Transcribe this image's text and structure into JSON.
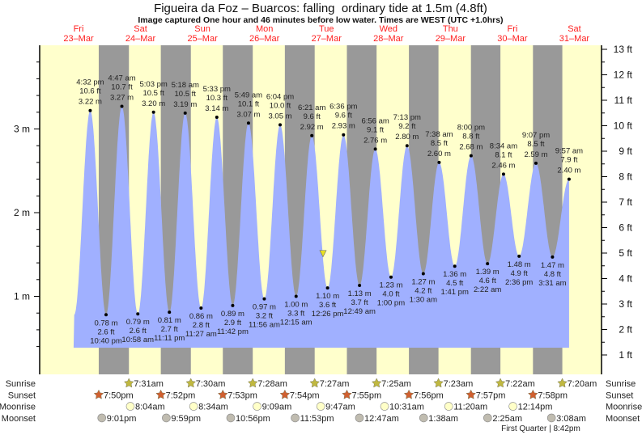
{
  "chart_data": {
    "type": "area",
    "title": "Figueira da Foz – Buarcos: falling  ordinary tide at 1.5m (4.8ft)",
    "subtitle": "Image captured One hour and 46 minutes before low water. Times are WEST (UTC +1.0hrs)",
    "days": [
      {
        "dow": "Fri",
        "date": "23–Mar"
      },
      {
        "dow": "Sat",
        "date": "24–Mar"
      },
      {
        "dow": "Sun",
        "date": "25–Mar"
      },
      {
        "dow": "Mon",
        "date": "26–Mar"
      },
      {
        "dow": "Tue",
        "date": "27–Mar"
      },
      {
        "dow": "Wed",
        "date": "28–Mar"
      },
      {
        "dow": "Thu",
        "date": "29–Mar"
      },
      {
        "dow": "Fri",
        "date": "30–Mar"
      },
      {
        "dow": "Sat",
        "date": "31–Mar"
      }
    ],
    "y_left": {
      "unit": "m",
      "ticks": [
        "1 m",
        "2 m",
        "3 m"
      ]
    },
    "y_right": {
      "unit": "ft",
      "ticks": [
        "1 ft",
        "2 ft",
        "3 ft",
        "4 ft",
        "5 ft",
        "6 ft",
        "7 ft",
        "8 ft",
        "9 ft",
        "10 ft",
        "11 ft",
        "12 ft",
        "13 ft"
      ]
    },
    "extremes": [
      {
        "type": "high",
        "day": 0,
        "time": "4:32 pm",
        "ft": "10.6 ft",
        "m": "3.22 m",
        "value": 3.22
      },
      {
        "type": "low",
        "day": 0,
        "time": "10:40 pm",
        "ft": "2.6 ft",
        "m": "0.78 m",
        "value": 0.78
      },
      {
        "type": "high",
        "day": 1,
        "time": "4:47 am",
        "ft": "10.7 ft",
        "m": "3.27 m",
        "value": 3.27
      },
      {
        "type": "low",
        "day": 1,
        "time": "10:58 am",
        "ft": "2.6 ft",
        "m": "0.79 m",
        "value": 0.79
      },
      {
        "type": "high",
        "day": 1,
        "time": "5:03 pm",
        "ft": "10.5 ft",
        "m": "3.20 m",
        "value": 3.2
      },
      {
        "type": "low",
        "day": 1,
        "time": "11:11 pm",
        "ft": "2.7 ft",
        "m": "0.81 m",
        "value": 0.81
      },
      {
        "type": "high",
        "day": 2,
        "time": "5:18 am",
        "ft": "10.5 ft",
        "m": "3.19 m",
        "value": 3.19
      },
      {
        "type": "low",
        "day": 2,
        "time": "11:27 am",
        "ft": "2.8 ft",
        "m": "0.86 m",
        "value": 0.86
      },
      {
        "type": "high",
        "day": 2,
        "time": "5:33 pm",
        "ft": "10.3 ft",
        "m": "3.14 m",
        "value": 3.14
      },
      {
        "type": "low",
        "day": 2,
        "time": "11:42 pm",
        "ft": "2.9 ft",
        "m": "0.89 m",
        "value": 0.89
      },
      {
        "type": "high",
        "day": 3,
        "time": "5:49 am",
        "ft": "10.1 ft",
        "m": "3.07 m",
        "value": 3.07
      },
      {
        "type": "low",
        "day": 3,
        "time": "11:56 am",
        "ft": "3.2 ft",
        "m": "0.97 m",
        "value": 0.97
      },
      {
        "type": "high",
        "day": 3,
        "time": "6:04 pm",
        "ft": "10.0 ft",
        "m": "3.05 m",
        "value": 3.05
      },
      {
        "type": "low",
        "day": 4,
        "time": "12:15 am",
        "ft": "3.3 ft",
        "m": "1.00 m",
        "value": 1.0
      },
      {
        "type": "high",
        "day": 4,
        "time": "6:21 am",
        "ft": "9.6 ft",
        "m": "2.92 m",
        "value": 2.92
      },
      {
        "type": "low",
        "day": 4,
        "time": "12:26 pm",
        "ft": "3.6 ft",
        "m": "1.10 m",
        "value": 1.1
      },
      {
        "type": "high",
        "day": 4,
        "time": "6:36 pm",
        "ft": "9.6 ft",
        "m": "2.93 m",
        "value": 2.93
      },
      {
        "type": "low",
        "day": 5,
        "time": "12:49 am",
        "ft": "3.7 ft",
        "m": "1.13 m",
        "value": 1.13
      },
      {
        "type": "high",
        "day": 5,
        "time": "6:56 am",
        "ft": "9.1 ft",
        "m": "2.76 m",
        "value": 2.76
      },
      {
        "type": "low",
        "day": 5,
        "time": "1:00 pm",
        "ft": "4.0 ft",
        "m": "1.23 m",
        "value": 1.23
      },
      {
        "type": "high",
        "day": 5,
        "time": "7:13 pm",
        "ft": "9.2 ft",
        "m": "2.80 m",
        "value": 2.8
      },
      {
        "type": "low",
        "day": 6,
        "time": "1:30 am",
        "ft": "4.2 ft",
        "m": "1.27 m",
        "value": 1.27
      },
      {
        "type": "high",
        "day": 6,
        "time": "7:38 am",
        "ft": "8.5 ft",
        "m": "2.60 m",
        "value": 2.6
      },
      {
        "type": "low",
        "day": 6,
        "time": "1:41 pm",
        "ft": "4.5 ft",
        "m": "1.36 m",
        "value": 1.36
      },
      {
        "type": "high",
        "day": 6,
        "time": "8:00 pm",
        "ft": "8.8 ft",
        "m": "2.68 m",
        "value": 2.68
      },
      {
        "type": "low",
        "day": 7,
        "time": "2:22 am",
        "ft": "4.6 ft",
        "m": "1.39 m",
        "value": 1.39
      },
      {
        "type": "high",
        "day": 7,
        "time": "8:34 am",
        "ft": "8.1 ft",
        "m": "2.46 m",
        "value": 2.46
      },
      {
        "type": "low",
        "day": 7,
        "time": "2:36 pm",
        "ft": "4.9 ft",
        "m": "1.48 m",
        "value": 1.48
      },
      {
        "type": "high",
        "day": 7,
        "time": "9:07 pm",
        "ft": "8.5 ft",
        "m": "2.59 m",
        "value": 2.59
      },
      {
        "type": "low",
        "day": 8,
        "time": "3:31 am",
        "ft": "4.8 ft",
        "m": "1.47 m",
        "value": 1.47
      },
      {
        "type": "high",
        "day": 8,
        "time": "9:57 am",
        "ft": "7.9 ft",
        "m": "2.40 m",
        "value": 2.4
      }
    ],
    "current": {
      "value_m": 1.5,
      "color": "#e8e020"
    },
    "colors": {
      "day": "#ffffcc",
      "night": "#999999",
      "water": "#a0b0ff",
      "dates": "#ff2020"
    }
  },
  "astro": {
    "rows": [
      {
        "label": "Sunrise",
        "icon": "sunrise-star-icon",
        "color": "#c0b840",
        "events": [
          [
            1,
            "7:31am"
          ],
          [
            2,
            "7:30am"
          ],
          [
            3,
            "7:28am"
          ],
          [
            4,
            "7:27am"
          ],
          [
            5,
            "7:25am"
          ],
          [
            6,
            "7:23am"
          ],
          [
            7,
            "7:22am"
          ],
          [
            8,
            "7:20am"
          ]
        ]
      },
      {
        "label": "Sunset",
        "icon": "sunset-star-icon",
        "color": "#d06030",
        "events": [
          [
            0,
            "7:50pm"
          ],
          [
            1,
            "7:52pm"
          ],
          [
            2,
            "7:53pm"
          ],
          [
            3,
            "7:54pm"
          ],
          [
            4,
            "7:55pm"
          ],
          [
            5,
            "7:56pm"
          ],
          [
            6,
            "7:57pm"
          ],
          [
            7,
            "7:58pm"
          ]
        ]
      },
      {
        "label": "Moonrise",
        "icon": "moonrise-circle-icon",
        "color": "#ffffc8",
        "events": [
          [
            1,
            "8:04am"
          ],
          [
            2,
            "8:34am"
          ],
          [
            3,
            "9:09am"
          ],
          [
            4,
            "9:47am"
          ],
          [
            5,
            "10:31am"
          ],
          [
            6,
            "11:20am"
          ],
          [
            7,
            "12:14pm"
          ]
        ]
      },
      {
        "label": "Moonset",
        "icon": "moonset-circle-icon",
        "color": "#c0bcb0",
        "events": [
          [
            0,
            "9:01pm"
          ],
          [
            1,
            "9:59pm"
          ],
          [
            2,
            "10:56pm"
          ],
          [
            3,
            "11:53pm"
          ],
          [
            5,
            "12:47am"
          ],
          [
            6,
            "1:38am"
          ],
          [
            7,
            "2:25am"
          ],
          [
            8,
            "3:08am"
          ]
        ]
      }
    ],
    "moon_phase": "First Quarter | 8:42pm"
  }
}
